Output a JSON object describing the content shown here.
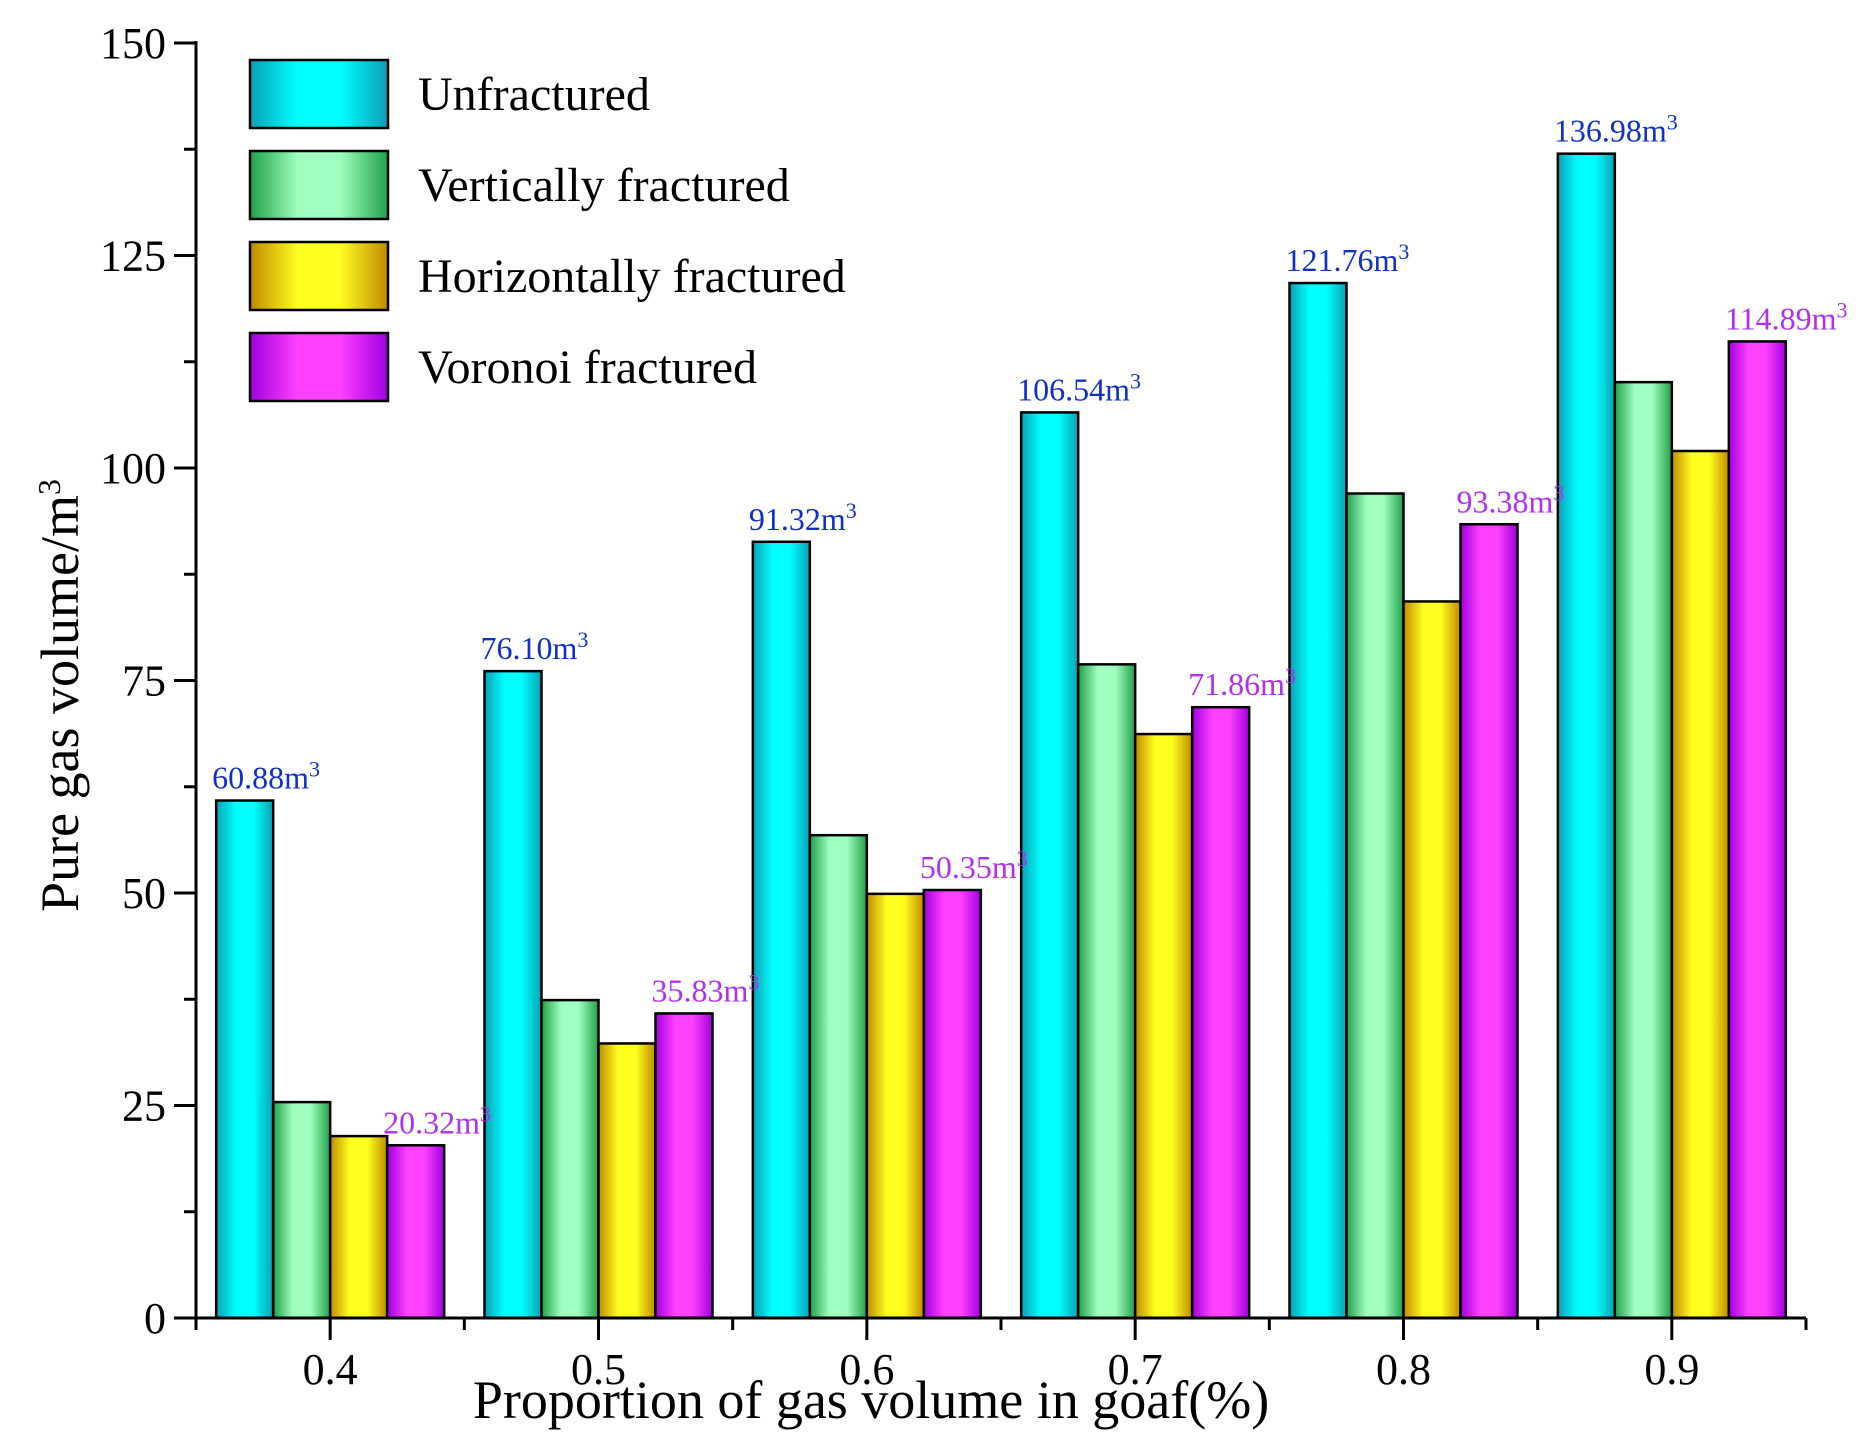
{
  "chart_data": {
    "type": "bar",
    "title": "",
    "xlabel": "Proportion of gas volume in goaf(%)",
    "ylabel": "Pure gas volume/m",
    "ylabel_sup": "3",
    "categories": [
      "0.4",
      "0.5",
      "0.6",
      "0.7",
      "0.8",
      "0.9"
    ],
    "ylim": [
      0,
      150
    ],
    "yticks": [
      "0",
      "25",
      "50",
      "75",
      "100",
      "125",
      "150"
    ],
    "legend_position": "top-left",
    "series": [
      {
        "name": "Unfractured",
        "values": [
          60.88,
          76.1,
          91.32,
          106.54,
          121.76,
          136.98
        ],
        "color_light": "#00ffff",
        "color_dark": "#0aa0b4",
        "label_color": "#1030c8"
      },
      {
        "name": "Vertically fractured",
        "values": [
          25.4,
          37.4,
          56.8,
          76.9,
          97.0,
          110.1
        ],
        "color_light": "#a0ffc0",
        "color_dark": "#20a048"
      },
      {
        "name": "Horizontally fractured",
        "values": [
          21.4,
          32.3,
          49.9,
          68.7,
          84.3,
          102.0
        ],
        "color_light": "#ffff20",
        "color_dark": "#c08a00"
      },
      {
        "name": "Voronoi fractured",
        "values": [
          20.32,
          35.83,
          50.35,
          71.86,
          93.38,
          114.89
        ],
        "color_light": "#ff40ff",
        "color_dark": "#a000e0",
        "label_color": "#b030f0"
      }
    ],
    "annotations": [
      {
        "series": "Unfractured",
        "category": "0.4",
        "text": "60.88m",
        "sup": "3"
      },
      {
        "series": "Unfractured",
        "category": "0.5",
        "text": "76.10m",
        "sup": "3"
      },
      {
        "series": "Unfractured",
        "category": "0.6",
        "text": "91.32m",
        "sup": "3"
      },
      {
        "series": "Unfractured",
        "category": "0.7",
        "text": "106.54m",
        "sup": "3"
      },
      {
        "series": "Unfractured",
        "category": "0.8",
        "text": "121.76m",
        "sup": "3"
      },
      {
        "series": "Unfractured",
        "category": "0.9",
        "text": "136.98m",
        "sup": "3"
      },
      {
        "series": "Voronoi fractured",
        "category": "0.4",
        "text": "20.32m",
        "sup": "3"
      },
      {
        "series": "Voronoi fractured",
        "category": "0.5",
        "text": "35.83m",
        "sup": "3"
      },
      {
        "series": "Voronoi fractured",
        "category": "0.6",
        "text": "50.35m",
        "sup": "3"
      },
      {
        "series": "Voronoi fractured",
        "category": "0.7",
        "text": "71.86m",
        "sup": "3"
      },
      {
        "series": "Voronoi fractured",
        "category": "0.8",
        "text": "93.38m",
        "sup": "3"
      },
      {
        "series": "Voronoi fractured",
        "category": "0.9",
        "text": "114.89m",
        "sup": "3"
      }
    ]
  }
}
